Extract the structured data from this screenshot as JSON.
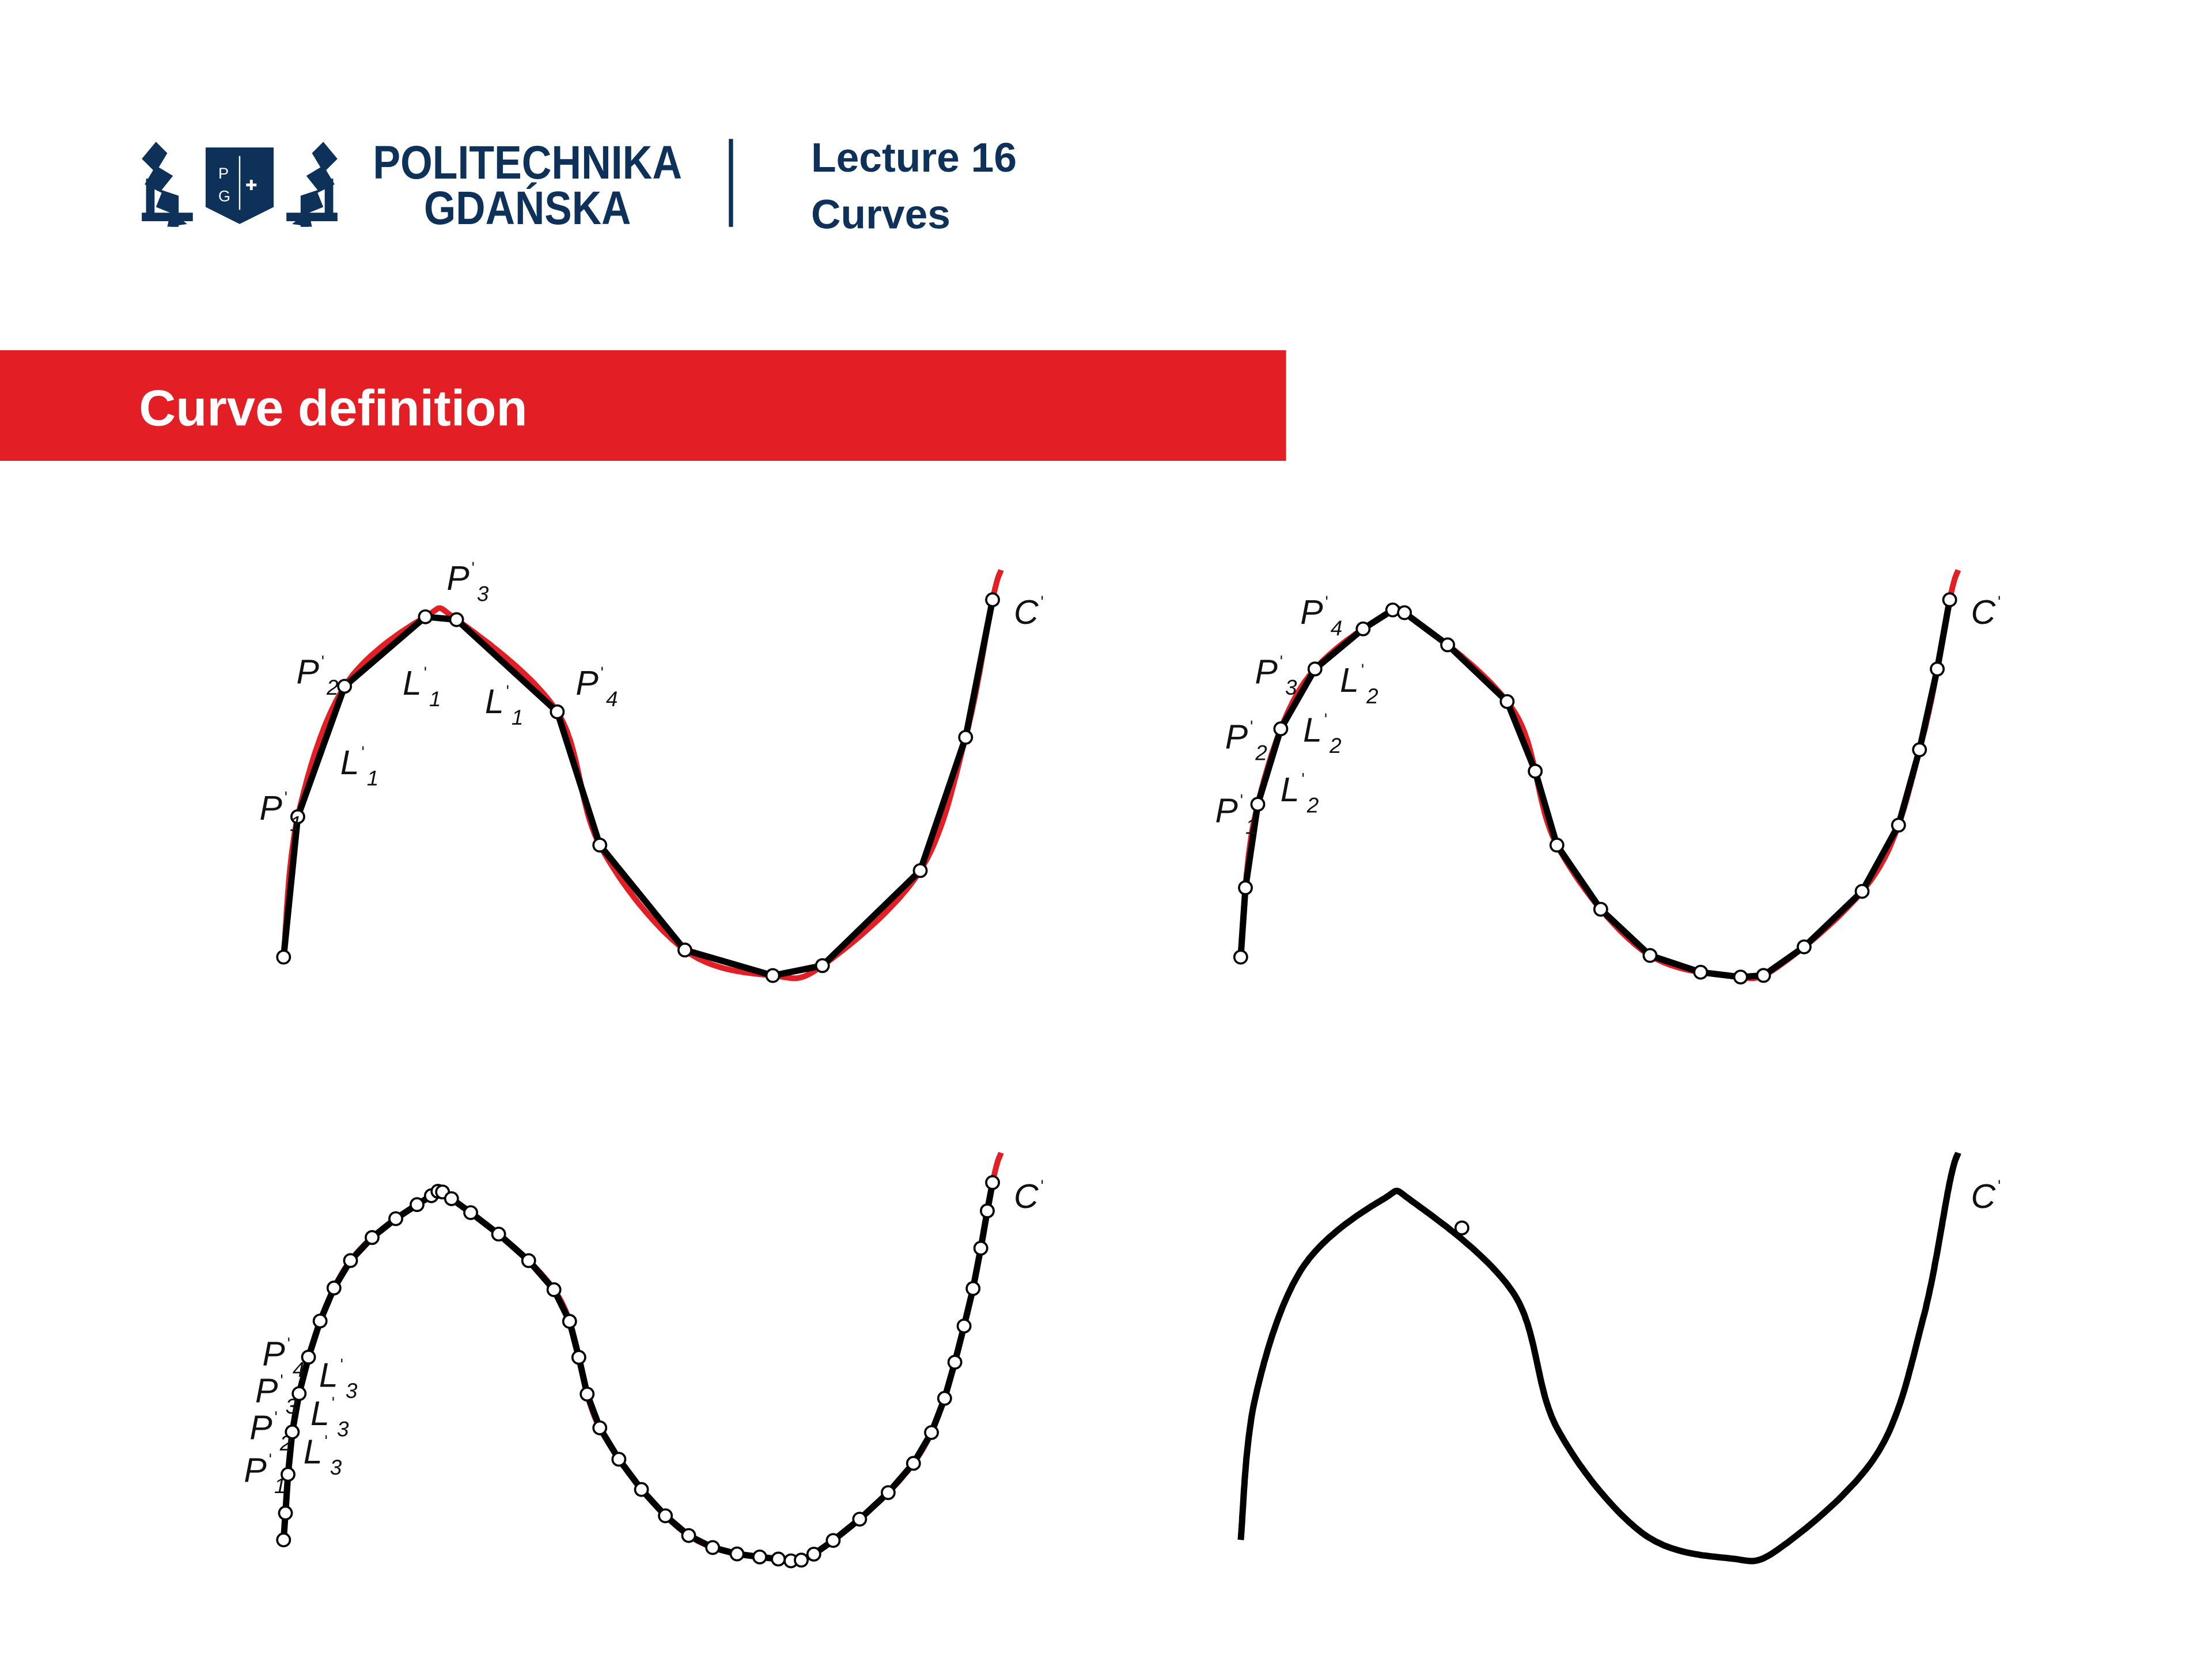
{
  "header": {
    "logo_text_line1": "POLITECHNIKA",
    "logo_text_line2": "GDAŃSKA",
    "logo_shield_letters": [
      "P",
      "G"
    ],
    "lecture": "Lecture 16",
    "topic": "Curves"
  },
  "section_title": "Curve definition",
  "colors": {
    "brand_navy": "#0d3158",
    "accent_red": "#e31e24",
    "polyline": "#000000"
  },
  "labels": {
    "prime": "ˈ",
    "curve": "C",
    "point": "P",
    "segment": "L",
    "subs": [
      "1",
      "2",
      "3",
      "4"
    ]
  },
  "panels": [
    {
      "name": "subdivision-1",
      "segment_index": "1"
    },
    {
      "name": "subdivision-2",
      "segment_index": "2"
    },
    {
      "name": "subdivision-3",
      "segment_index": "3"
    },
    {
      "name": "limit-curve"
    }
  ]
}
